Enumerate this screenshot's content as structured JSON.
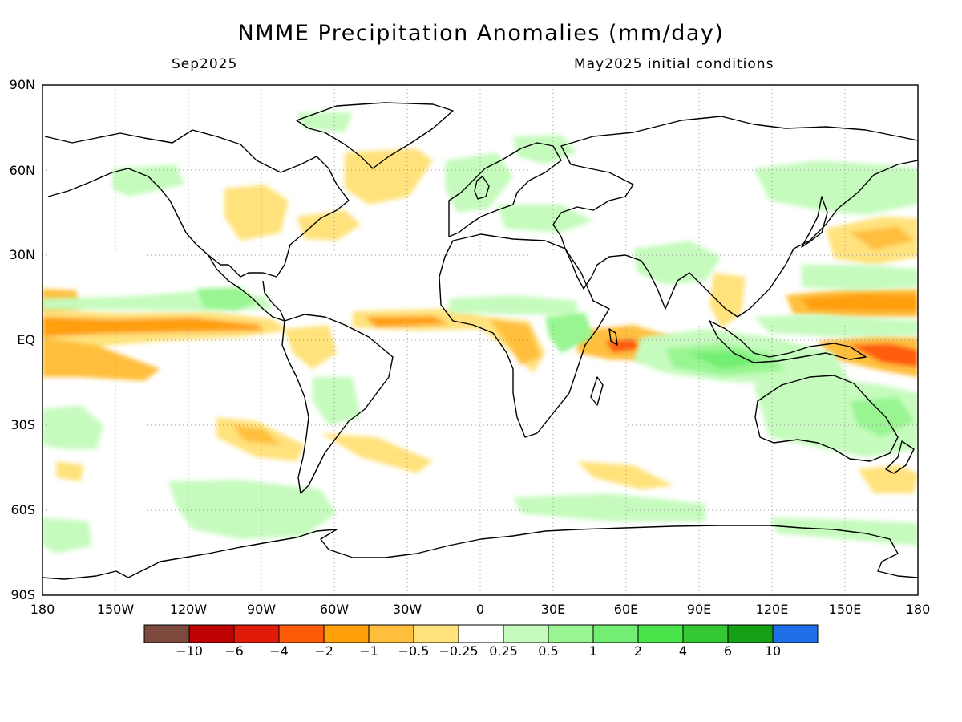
{
  "title": "NMME Precipitation Anomalies (mm/day)",
  "subtitle_left": "Sep2025",
  "subtitle_right": "May2025 initial conditions",
  "lat_labels": [
    "90N",
    "60N",
    "30N",
    "EQ",
    "30S",
    "60S",
    "90S"
  ],
  "lon_labels": [
    "180",
    "150W",
    "120W",
    "90W",
    "60W",
    "30W",
    "0",
    "30E",
    "60E",
    "90E",
    "120E",
    "150E",
    "180"
  ],
  "colorbar": {
    "colors": [
      "#7b4a3d",
      "#bd0000",
      "#e11b0a",
      "#ff5c0a",
      "#ff9f0a",
      "#ffbf3c",
      "#ffe27c",
      "#ffffff",
      "#c6fbbe",
      "#98f591",
      "#72ee72",
      "#4ae54a",
      "#34c834",
      "#14a014",
      "#1f6fe8"
    ],
    "labels": [
      "−10",
      "−6",
      "−4",
      "−2",
      "−1",
      "−0.5",
      "−0.25",
      "0.25",
      "0.5",
      "1",
      "2",
      "4",
      "6",
      "10"
    ]
  },
  "palette": {
    "dry_light": "#ffe27c",
    "dry_mid": "#ffbf3c",
    "dry_strong": "#ff9f0a",
    "dry_max": "#ff5c0a",
    "wet_light": "#c6fbbe",
    "wet_mid": "#98f591",
    "wet_strong": "#72ee72",
    "wet_max": "#4ae54a",
    "coast": "#000000",
    "grid": "#9a9a9a"
  }
}
